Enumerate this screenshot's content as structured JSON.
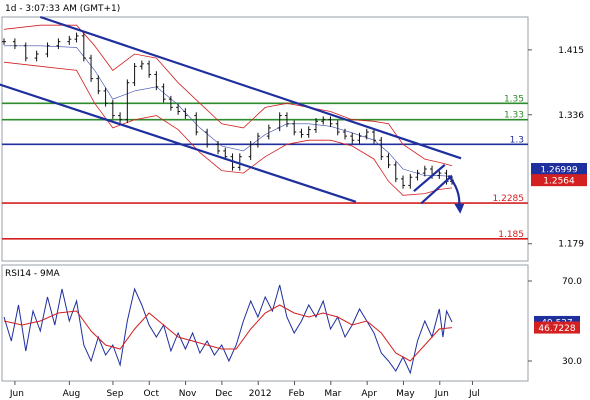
{
  "header": {
    "title": "1d - 3:07:33 AM (GMT+1)",
    "rsi_title": "RSI14 - 9MA"
  },
  "chart_data": [
    {
      "type": "candlestick",
      "title": "1d - 3:07:33 AM (GMT+1)",
      "xlabel": "",
      "ylabel": "",
      "ylim": [
        1.158,
        1.455
      ],
      "x_ticks": [
        "Jun",
        "Aug",
        "Sep",
        "Oct",
        "Nov",
        "Dec",
        "2012",
        "Feb",
        "Mar",
        "Apr",
        "May",
        "Jun",
        "Jul"
      ],
      "y_ticks": [
        1.415,
        1.336,
        1.179
      ],
      "price_labels": [
        {
          "value": 1.26999,
          "text": "1.26999",
          "color": "#1f2f9e"
        },
        {
          "value": 1.25879,
          "text": "1.25879",
          "color": "#1f2f9e"
        },
        {
          "value": 1.2564,
          "text": "1.2564",
          "color": "#d42020"
        }
      ],
      "horizontal_levels": [
        {
          "value": 1.35,
          "label": "1.35",
          "color": "#2e8b2e"
        },
        {
          "value": 1.33,
          "label": "1.33",
          "color": "#2e8b2e"
        },
        {
          "value": 1.3,
          "label": "1.3",
          "color": "#1f2f9e"
        },
        {
          "value": 1.2285,
          "label": "1.2285",
          "color": "#d42020"
        },
        {
          "value": 1.185,
          "label": "1.185",
          "color": "#d42020"
        }
      ],
      "close_series": [
        {
          "m": 0.0,
          "v": 1.425
        },
        {
          "m": 0.3,
          "v": 1.42
        },
        {
          "m": 0.6,
          "v": 1.405
        },
        {
          "m": 0.9,
          "v": 1.41
        },
        {
          "m": 1.2,
          "v": 1.42
        },
        {
          "m": 1.5,
          "v": 1.425
        },
        {
          "m": 1.8,
          "v": 1.428
        },
        {
          "m": 2.0,
          "v": 1.432
        },
        {
          "m": 2.2,
          "v": 1.405
        },
        {
          "m": 2.4,
          "v": 1.38
        },
        {
          "m": 2.6,
          "v": 1.365
        },
        {
          "m": 2.8,
          "v": 1.35
        },
        {
          "m": 3.0,
          "v": 1.335
        },
        {
          "m": 3.2,
          "v": 1.33
        },
        {
          "m": 3.4,
          "v": 1.375
        },
        {
          "m": 3.6,
          "v": 1.395
        },
        {
          "m": 3.8,
          "v": 1.398
        },
        {
          "m": 4.0,
          "v": 1.385
        },
        {
          "m": 4.2,
          "v": 1.37
        },
        {
          "m": 4.4,
          "v": 1.355
        },
        {
          "m": 4.6,
          "v": 1.345
        },
        {
          "m": 4.8,
          "v": 1.34
        },
        {
          "m": 5.0,
          "v": 1.335
        },
        {
          "m": 5.3,
          "v": 1.315
        },
        {
          "m": 5.6,
          "v": 1.3
        },
        {
          "m": 5.9,
          "v": 1.292
        },
        {
          "m": 6.1,
          "v": 1.285
        },
        {
          "m": 6.3,
          "v": 1.272
        },
        {
          "m": 6.5,
          "v": 1.285
        },
        {
          "m": 6.8,
          "v": 1.3
        },
        {
          "m": 7.0,
          "v": 1.31
        },
        {
          "m": 7.3,
          "v": 1.32
        },
        {
          "m": 7.6,
          "v": 1.335
        },
        {
          "m": 7.8,
          "v": 1.325
        },
        {
          "m": 8.0,
          "v": 1.315
        },
        {
          "m": 8.2,
          "v": 1.312
        },
        {
          "m": 8.4,
          "v": 1.318
        },
        {
          "m": 8.6,
          "v": 1.328
        },
        {
          "m": 8.8,
          "v": 1.33
        },
        {
          "m": 9.0,
          "v": 1.325
        },
        {
          "m": 9.2,
          "v": 1.315
        },
        {
          "m": 9.4,
          "v": 1.31
        },
        {
          "m": 9.6,
          "v": 1.305
        },
        {
          "m": 9.8,
          "v": 1.31
        },
        {
          "m": 10.0,
          "v": 1.315
        },
        {
          "m": 10.2,
          "v": 1.305
        },
        {
          "m": 10.4,
          "v": 1.285
        },
        {
          "m": 10.6,
          "v": 1.275
        },
        {
          "m": 10.8,
          "v": 1.258
        },
        {
          "m": 11.0,
          "v": 1.25
        },
        {
          "m": 11.2,
          "v": 1.26
        },
        {
          "m": 11.4,
          "v": 1.265
        },
        {
          "m": 11.6,
          "v": 1.27
        },
        {
          "m": 11.8,
          "v": 1.262
        },
        {
          "m": 12.0,
          "v": 1.265
        },
        {
          "m": 12.2,
          "v": 1.255
        },
        {
          "m": 12.35,
          "v": 1.2564
        }
      ],
      "bollinger_upper": [
        {
          "m": 0.0,
          "v": 1.44
        },
        {
          "m": 1.0,
          "v": 1.445
        },
        {
          "m": 2.0,
          "v": 1.445
        },
        {
          "m": 2.5,
          "v": 1.42
        },
        {
          "m": 3.0,
          "v": 1.39
        },
        {
          "m": 3.6,
          "v": 1.41
        },
        {
          "m": 4.2,
          "v": 1.405
        },
        {
          "m": 4.8,
          "v": 1.375
        },
        {
          "m": 5.4,
          "v": 1.35
        },
        {
          "m": 6.0,
          "v": 1.325
        },
        {
          "m": 6.6,
          "v": 1.32
        },
        {
          "m": 7.2,
          "v": 1.345
        },
        {
          "m": 7.8,
          "v": 1.35
        },
        {
          "m": 8.4,
          "v": 1.345
        },
        {
          "m": 9.0,
          "v": 1.34
        },
        {
          "m": 9.6,
          "v": 1.33
        },
        {
          "m": 10.2,
          "v": 1.328
        },
        {
          "m": 10.6,
          "v": 1.325
        },
        {
          "m": 11.0,
          "v": 1.3
        },
        {
          "m": 11.6,
          "v": 1.282
        },
        {
          "m": 12.0,
          "v": 1.278
        },
        {
          "m": 12.35,
          "v": 1.274
        }
      ],
      "bollinger_lower": [
        {
          "m": 0.0,
          "v": 1.4
        },
        {
          "m": 1.0,
          "v": 1.395
        },
        {
          "m": 2.0,
          "v": 1.39
        },
        {
          "m": 2.5,
          "v": 1.35
        },
        {
          "m": 3.0,
          "v": 1.32
        },
        {
          "m": 3.6,
          "v": 1.33
        },
        {
          "m": 4.2,
          "v": 1.335
        },
        {
          "m": 4.8,
          "v": 1.318
        },
        {
          "m": 5.4,
          "v": 1.29
        },
        {
          "m": 6.0,
          "v": 1.268
        },
        {
          "m": 6.6,
          "v": 1.265
        },
        {
          "m": 7.2,
          "v": 1.285
        },
        {
          "m": 7.8,
          "v": 1.3
        },
        {
          "m": 8.4,
          "v": 1.305
        },
        {
          "m": 9.0,
          "v": 1.305
        },
        {
          "m": 9.6,
          "v": 1.298
        },
        {
          "m": 10.2,
          "v": 1.282
        },
        {
          "m": 10.6,
          "v": 1.255
        },
        {
          "m": 11.0,
          "v": 1.238
        },
        {
          "m": 11.6,
          "v": 1.24
        },
        {
          "m": 12.0,
          "v": 1.245
        },
        {
          "m": 12.35,
          "v": 1.247
        }
      ],
      "bollinger_middle": [
        {
          "m": 0.0,
          "v": 1.42
        },
        {
          "m": 1.0,
          "v": 1.42
        },
        {
          "m": 2.0,
          "v": 1.418
        },
        {
          "m": 2.5,
          "v": 1.39
        },
        {
          "m": 3.0,
          "v": 1.355
        },
        {
          "m": 3.6,
          "v": 1.365
        },
        {
          "m": 4.2,
          "v": 1.37
        },
        {
          "m": 4.8,
          "v": 1.348
        },
        {
          "m": 5.4,
          "v": 1.32
        },
        {
          "m": 6.0,
          "v": 1.298
        },
        {
          "m": 6.6,
          "v": 1.292
        },
        {
          "m": 7.2,
          "v": 1.312
        },
        {
          "m": 7.8,
          "v": 1.325
        },
        {
          "m": 8.4,
          "v": 1.325
        },
        {
          "m": 9.0,
          "v": 1.322
        },
        {
          "m": 9.6,
          "v": 1.314
        },
        {
          "m": 10.2,
          "v": 1.305
        },
        {
          "m": 10.6,
          "v": 1.29
        },
        {
          "m": 11.0,
          "v": 1.27
        },
        {
          "m": 11.6,
          "v": 1.262
        },
        {
          "m": 12.0,
          "v": 1.262
        },
        {
          "m": 12.35,
          "v": 1.261
        }
      ],
      "trend_channels": [
        {
          "from": {
            "m": 1.0,
            "v": 1.455
          },
          "to": {
            "m": 12.6,
            "v": 1.283
          },
          "color": "#1f2f9e"
        },
        {
          "from": {
            "m": -0.2,
            "v": 1.374
          },
          "to": {
            "m": 9.7,
            "v": 1.23
          },
          "color": "#1f2f9e"
        },
        {
          "from": {
            "m": 11.3,
            "v": 1.243
          },
          "to": {
            "m": 12.15,
            "v": 1.275
          },
          "color": "#1f2f9e"
        },
        {
          "from": {
            "m": 11.5,
            "v": 1.228
          },
          "to": {
            "m": 12.35,
            "v": 1.262
          },
          "color": "#1f2f9e"
        }
      ],
      "forecast_arrow": {
        "from": {
          "m": 12.25,
          "v": 1.262
        },
        "to": {
          "m": 12.55,
          "v": 1.218
        },
        "color": "#1f2f9e"
      }
    },
    {
      "type": "line",
      "title": "RSI14 - 9MA",
      "ylim": [
        20,
        78
      ],
      "y_ticks": [
        70.0,
        30.0
      ],
      "series": [
        {
          "name": "RSI14",
          "color": "#1f2f9e",
          "points": [
            {
              "m": 0.0,
              "v": 52
            },
            {
              "m": 0.2,
              "v": 40
            },
            {
              "m": 0.4,
              "v": 58
            },
            {
              "m": 0.6,
              "v": 35
            },
            {
              "m": 0.8,
              "v": 55
            },
            {
              "m": 1.0,
              "v": 45
            },
            {
              "m": 1.2,
              "v": 62
            },
            {
              "m": 1.4,
              "v": 48
            },
            {
              "m": 1.6,
              "v": 66
            },
            {
              "m": 1.8,
              "v": 50
            },
            {
              "m": 2.0,
              "v": 60
            },
            {
              "m": 2.2,
              "v": 38
            },
            {
              "m": 2.4,
              "v": 30
            },
            {
              "m": 2.6,
              "v": 42
            },
            {
              "m": 2.8,
              "v": 33
            },
            {
              "m": 3.0,
              "v": 38
            },
            {
              "m": 3.2,
              "v": 28
            },
            {
              "m": 3.4,
              "v": 50
            },
            {
              "m": 3.6,
              "v": 66
            },
            {
              "m": 3.8,
              "v": 58
            },
            {
              "m": 4.0,
              "v": 48
            },
            {
              "m": 4.2,
              "v": 42
            },
            {
              "m": 4.4,
              "v": 48
            },
            {
              "m": 4.6,
              "v": 35
            },
            {
              "m": 4.8,
              "v": 44
            },
            {
              "m": 5.0,
              "v": 36
            },
            {
              "m": 5.2,
              "v": 44
            },
            {
              "m": 5.4,
              "v": 34
            },
            {
              "m": 5.6,
              "v": 40
            },
            {
              "m": 5.8,
              "v": 33
            },
            {
              "m": 6.0,
              "v": 38
            },
            {
              "m": 6.2,
              "v": 30
            },
            {
              "m": 6.4,
              "v": 38
            },
            {
              "m": 6.6,
              "v": 50
            },
            {
              "m": 6.8,
              "v": 60
            },
            {
              "m": 7.0,
              "v": 52
            },
            {
              "m": 7.2,
              "v": 62
            },
            {
              "m": 7.4,
              "v": 55
            },
            {
              "m": 7.6,
              "v": 68
            },
            {
              "m": 7.8,
              "v": 52
            },
            {
              "m": 8.0,
              "v": 44
            },
            {
              "m": 8.2,
              "v": 50
            },
            {
              "m": 8.4,
              "v": 58
            },
            {
              "m": 8.6,
              "v": 52
            },
            {
              "m": 8.8,
              "v": 60
            },
            {
              "m": 9.0,
              "v": 46
            },
            {
              "m": 9.2,
              "v": 52
            },
            {
              "m": 9.4,
              "v": 42
            },
            {
              "m": 9.6,
              "v": 48
            },
            {
              "m": 9.8,
              "v": 56
            },
            {
              "m": 10.0,
              "v": 50
            },
            {
              "m": 10.2,
              "v": 44
            },
            {
              "m": 10.4,
              "v": 34
            },
            {
              "m": 10.6,
              "v": 30
            },
            {
              "m": 10.8,
              "v": 25
            },
            {
              "m": 11.0,
              "v": 32
            },
            {
              "m": 11.2,
              "v": 24
            },
            {
              "m": 11.4,
              "v": 40
            },
            {
              "m": 11.6,
              "v": 50
            },
            {
              "m": 11.8,
              "v": 42
            },
            {
              "m": 12.0,
              "v": 56
            },
            {
              "m": 12.1,
              "v": 42
            },
            {
              "m": 12.2,
              "v": 55
            },
            {
              "m": 12.35,
              "v": 49.5
            }
          ]
        },
        {
          "name": "9MA",
          "color": "#d42020",
          "points": [
            {
              "m": 0.0,
              "v": 50
            },
            {
              "m": 0.5,
              "v": 48
            },
            {
              "m": 1.0,
              "v": 50
            },
            {
              "m": 1.5,
              "v": 54
            },
            {
              "m": 2.0,
              "v": 55
            },
            {
              "m": 2.4,
              "v": 45
            },
            {
              "m": 2.8,
              "v": 38
            },
            {
              "m": 3.2,
              "v": 36
            },
            {
              "m": 3.6,
              "v": 46
            },
            {
              "m": 4.0,
              "v": 54
            },
            {
              "m": 4.4,
              "v": 48
            },
            {
              "m": 4.8,
              "v": 42
            },
            {
              "m": 5.2,
              "v": 40
            },
            {
              "m": 5.6,
              "v": 38
            },
            {
              "m": 6.0,
              "v": 36
            },
            {
              "m": 6.4,
              "v": 36
            },
            {
              "m": 6.8,
              "v": 46
            },
            {
              "m": 7.2,
              "v": 54
            },
            {
              "m": 7.6,
              "v": 58
            },
            {
              "m": 8.0,
              "v": 54
            },
            {
              "m": 8.4,
              "v": 52
            },
            {
              "m": 8.8,
              "v": 54
            },
            {
              "m": 9.2,
              "v": 52
            },
            {
              "m": 9.6,
              "v": 48
            },
            {
              "m": 10.0,
              "v": 50
            },
            {
              "m": 10.4,
              "v": 44
            },
            {
              "m": 10.8,
              "v": 34
            },
            {
              "m": 11.2,
              "v": 30
            },
            {
              "m": 11.6,
              "v": 38
            },
            {
              "m": 12.0,
              "v": 46
            },
            {
              "m": 12.35,
              "v": 46.7
            }
          ]
        }
      ],
      "value_labels": [
        {
          "value": 49.527,
          "text": "49.527",
          "color": "#1f2f9e"
        },
        {
          "value": 46.7228,
          "text": "46.7228",
          "color": "#d42020"
        }
      ]
    }
  ]
}
